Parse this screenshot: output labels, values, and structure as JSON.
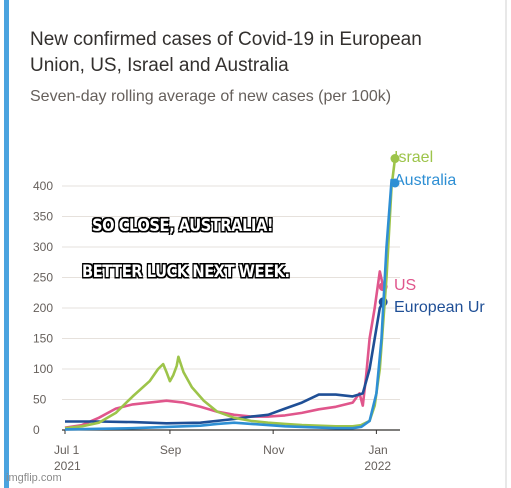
{
  "chart_data": {
    "type": "line",
    "title": "New confirmed cases of Covid-19 in European Union, US, Israel and Australia",
    "subtitle": "Seven-day rolling average of new cases (per 100k)",
    "xlabel": "",
    "ylabel": "",
    "ylim": [
      0,
      430
    ],
    "yticks": [
      0,
      50,
      100,
      150,
      200,
      250,
      300,
      350,
      400
    ],
    "xtick_labels": [
      {
        "x": 0,
        "line1": "Jul 1",
        "line2": "2021"
      },
      {
        "x": 62,
        "line1": "Sep",
        "line2": ""
      },
      {
        "x": 123,
        "line1": "Nov",
        "line2": ""
      },
      {
        "x": 184,
        "line1": "Jan",
        "line2": "2022"
      }
    ],
    "grid": true,
    "legend": "right",
    "series": [
      {
        "name": "Israel",
        "color": "#9dc44a",
        "points": [
          [
            0,
            3
          ],
          [
            10,
            6
          ],
          [
            20,
            12
          ],
          [
            30,
            28
          ],
          [
            40,
            55
          ],
          [
            50,
            80
          ],
          [
            55,
            100
          ],
          [
            58,
            108
          ],
          [
            60,
            95
          ],
          [
            62,
            80
          ],
          [
            64,
            90
          ],
          [
            66,
            105
          ],
          [
            67,
            120
          ],
          [
            70,
            95
          ],
          [
            75,
            70
          ],
          [
            82,
            48
          ],
          [
            90,
            30
          ],
          [
            100,
            20
          ],
          [
            110,
            15
          ],
          [
            120,
            12
          ],
          [
            130,
            10
          ],
          [
            140,
            8
          ],
          [
            150,
            7
          ],
          [
            160,
            6
          ],
          [
            170,
            6
          ],
          [
            175,
            8
          ],
          [
            180,
            15
          ],
          [
            183,
            40
          ],
          [
            186,
            100
          ],
          [
            190,
            250
          ],
          [
            193,
            400
          ],
          [
            195,
            445
          ]
        ]
      },
      {
        "name": "Australia",
        "color": "#2e8fd4",
        "points": [
          [
            0,
            1
          ],
          [
            20,
            2
          ],
          [
            40,
            3
          ],
          [
            60,
            5
          ],
          [
            80,
            7
          ],
          [
            90,
            10
          ],
          [
            100,
            12
          ],
          [
            110,
            10
          ],
          [
            120,
            8
          ],
          [
            130,
            6
          ],
          [
            140,
            5
          ],
          [
            150,
            4
          ],
          [
            160,
            3
          ],
          [
            170,
            3
          ],
          [
            175,
            5
          ],
          [
            180,
            15
          ],
          [
            184,
            60
          ],
          [
            187,
            150
          ],
          [
            190,
            300
          ],
          [
            193,
            410
          ],
          [
            195,
            405
          ]
        ]
      },
      {
        "name": "US",
        "color": "#e0568c",
        "points": [
          [
            0,
            4
          ],
          [
            10,
            8
          ],
          [
            20,
            20
          ],
          [
            30,
            35
          ],
          [
            40,
            42
          ],
          [
            50,
            45
          ],
          [
            60,
            48
          ],
          [
            70,
            45
          ],
          [
            80,
            38
          ],
          [
            90,
            30
          ],
          [
            100,
            25
          ],
          [
            110,
            22
          ],
          [
            120,
            22
          ],
          [
            130,
            24
          ],
          [
            140,
            28
          ],
          [
            150,
            34
          ],
          [
            160,
            38
          ],
          [
            170,
            45
          ],
          [
            174,
            60
          ],
          [
            176,
            40
          ],
          [
            178,
            90
          ],
          [
            180,
            150
          ],
          [
            183,
            200
          ],
          [
            186,
            260
          ],
          [
            188,
            235
          ]
        ]
      },
      {
        "name": "European Union",
        "color": "#1f4f96",
        "points": [
          [
            0,
            14
          ],
          [
            20,
            14
          ],
          [
            40,
            13
          ],
          [
            60,
            11
          ],
          [
            80,
            12
          ],
          [
            100,
            18
          ],
          [
            110,
            22
          ],
          [
            120,
            25
          ],
          [
            130,
            35
          ],
          [
            140,
            45
          ],
          [
            150,
            58
          ],
          [
            160,
            58
          ],
          [
            170,
            55
          ],
          [
            176,
            60
          ],
          [
            180,
            100
          ],
          [
            183,
            150
          ],
          [
            186,
            200
          ],
          [
            188,
            210
          ]
        ]
      }
    ]
  },
  "annotations": {
    "line1": "SO CLOSE,  AUSTRALIA!",
    "line2": "BETTER LUCK NEXT WEEK."
  },
  "legend_labels": {
    "israel": "Israel",
    "australia": "Australia",
    "us": "US",
    "eu": "European Ur"
  },
  "watermark": "imgflip.com",
  "colors": {
    "israel": "#9dc44a",
    "australia": "#2e8fd4",
    "us": "#e0568c",
    "eu": "#1f4f96",
    "grid": "#e6e1dc",
    "axis": "#33302e",
    "frame": "#4aa3df"
  }
}
